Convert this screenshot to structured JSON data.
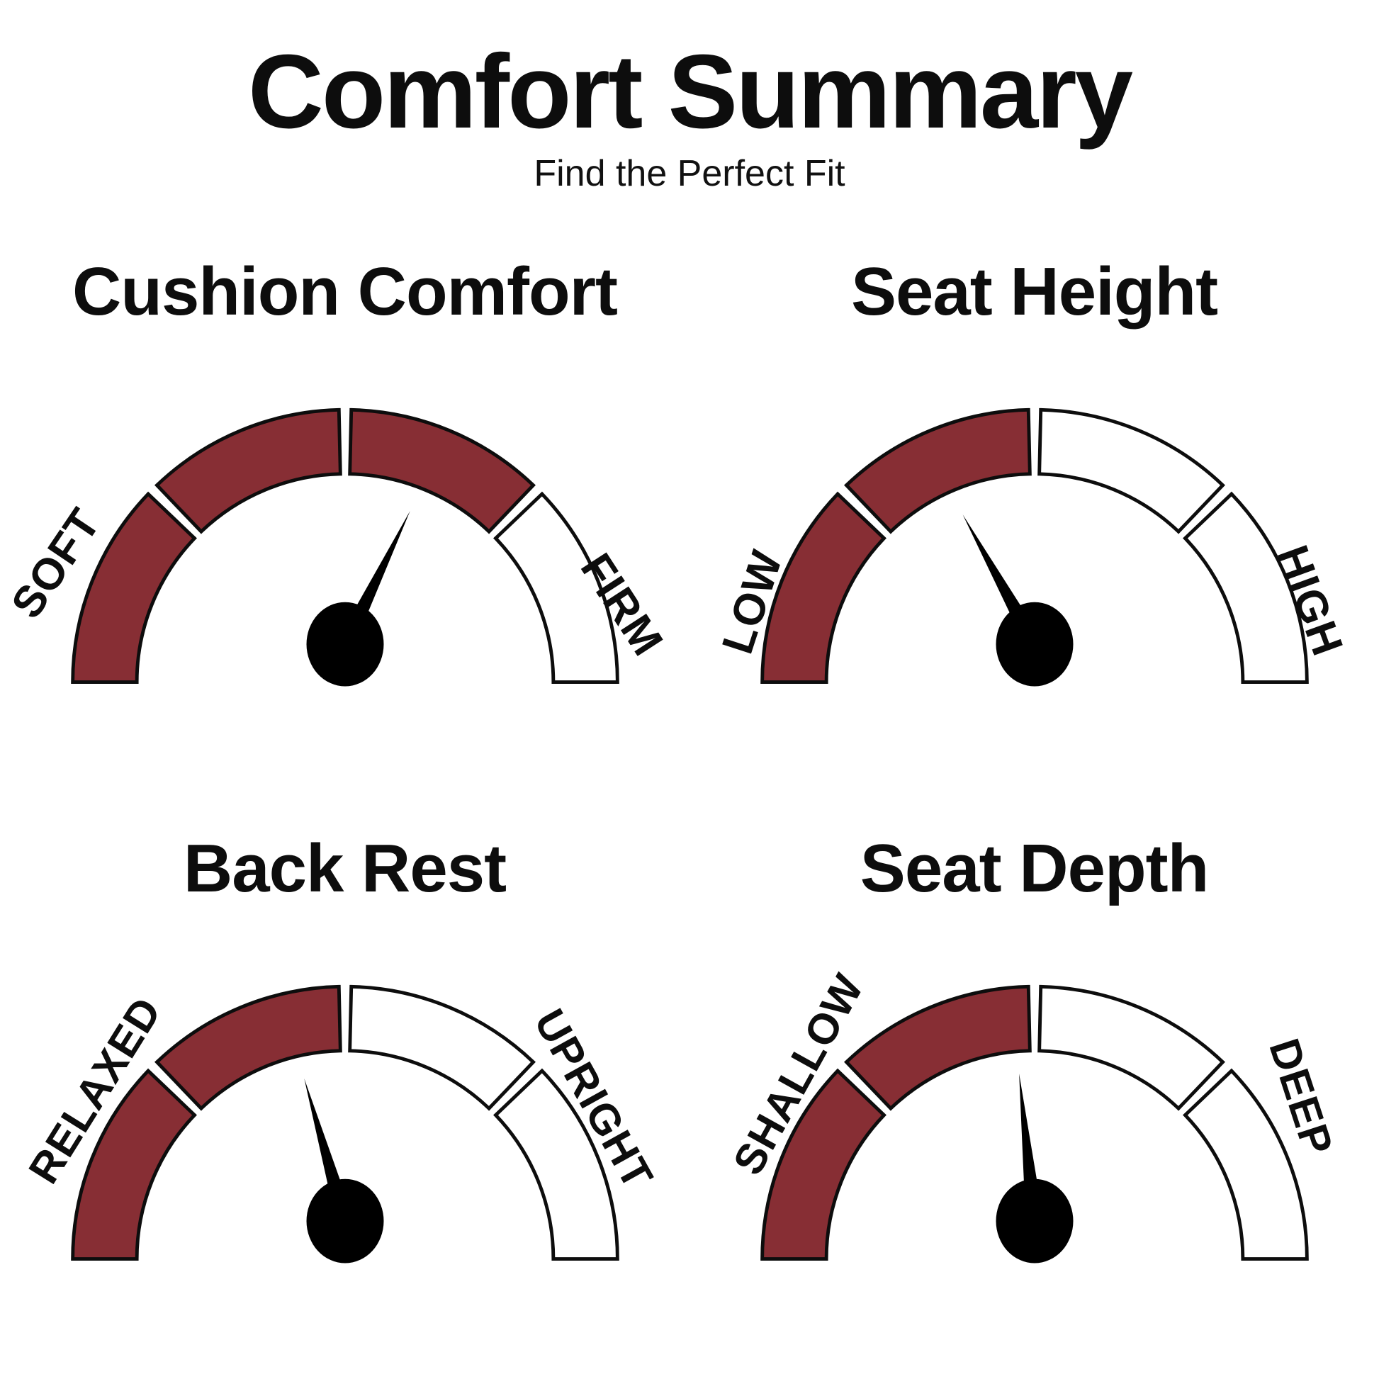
{
  "header": {
    "title": "Comfort Summary",
    "subtitle": "Find the Perfect Fit"
  },
  "colors": {
    "filled_segment": "#872E34",
    "empty_segment": "#ffffff",
    "outline": "#0d0d0d",
    "needle": "#000000",
    "background": "#ffffff",
    "text": "#0d0d0d"
  },
  "chart_data": [
    {
      "type": "gauge",
      "title": "Cushion Comfort",
      "min_label": "SOFT",
      "max_label": "FIRM",
      "segments_total": 4,
      "segment_fill": [
        true,
        true,
        true,
        false
      ],
      "segments_filled": 3,
      "needle_angle_deg_from_vertical": 26,
      "value_percent": 64
    },
    {
      "type": "gauge",
      "title": "Seat Height",
      "min_label": "LOW",
      "max_label": "HIGH",
      "segments_total": 4,
      "segment_fill": [
        true,
        true,
        false,
        false
      ],
      "segments_filled": 2,
      "needle_angle_deg_from_vertical": -29,
      "value_percent": 34
    },
    {
      "type": "gauge",
      "title": "Back Rest",
      "min_label": "RELAXED",
      "max_label": "UPRIGHT",
      "segments_total": 4,
      "segment_fill": [
        true,
        true,
        false,
        false
      ],
      "segments_filled": 2,
      "needle_angle_deg_from_vertical": -16,
      "value_percent": 41
    },
    {
      "type": "gauge",
      "title": "Seat Depth",
      "min_label": "SHALLOW",
      "max_label": "DEEP",
      "segments_total": 4,
      "segment_fill": [
        true,
        true,
        false,
        false
      ],
      "segments_filled": 2,
      "needle_angle_deg_from_vertical": -6,
      "value_percent": 47
    }
  ]
}
